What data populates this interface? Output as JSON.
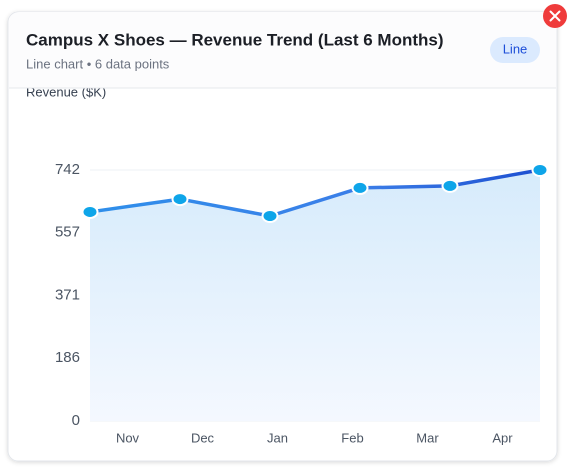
{
  "chart_data": {
    "type": "line",
    "title": "Campus X Shoes — Revenue Trend (Last 6 Months)",
    "subtitle": "Line chart • 6 data points",
    "badge": "Line",
    "y_label": "Revenue ($K)",
    "categories": [
      "Nov",
      "Dec",
      "Jan",
      "Feb",
      "Mar",
      "Apr"
    ],
    "series": [
      {
        "name": "Revenue",
        "color": "#2f80ed",
        "values": [
          618,
          656,
          606,
          689,
          695,
          742
        ]
      }
    ],
    "ylim": [
      0,
      742
    ],
    "yticks": [
      0,
      186,
      371,
      557,
      742
    ],
    "grid": true
  }
}
